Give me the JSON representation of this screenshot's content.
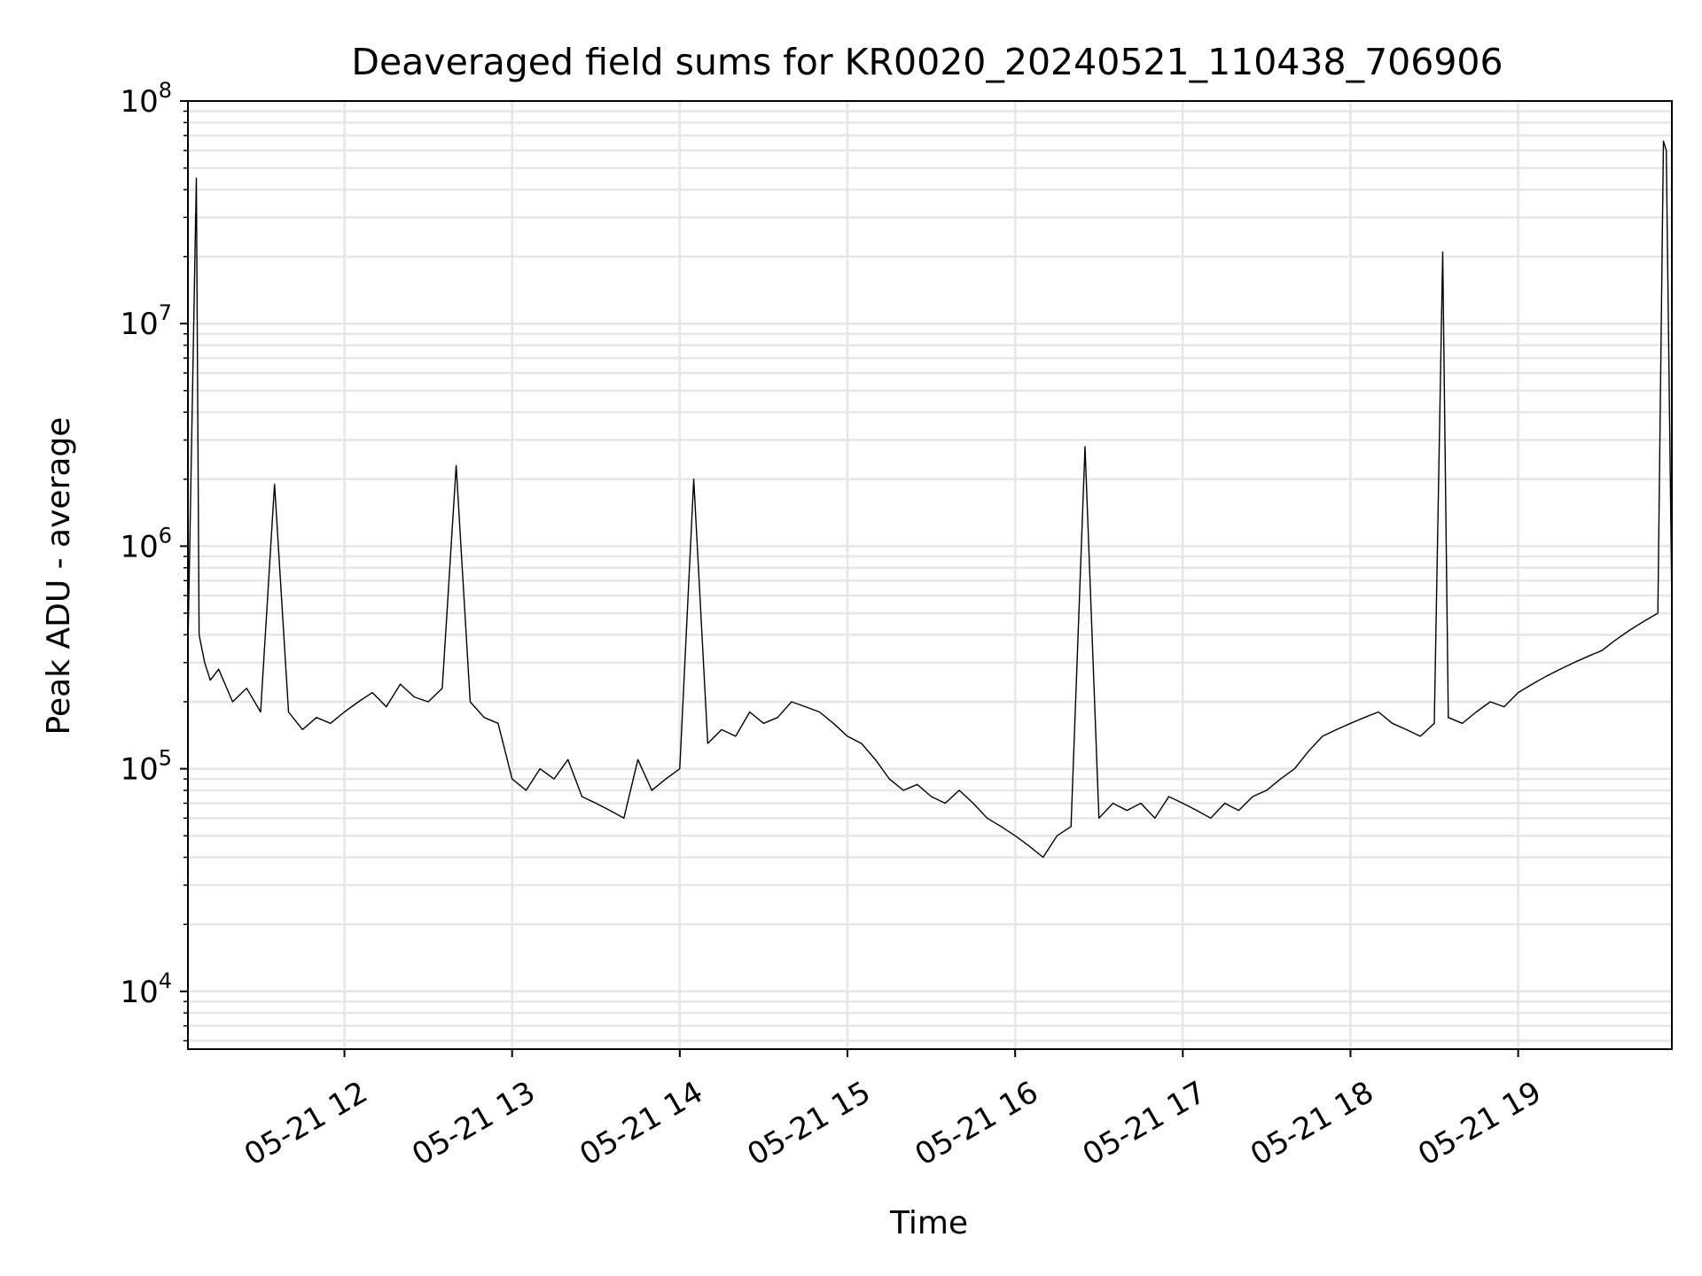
{
  "chart_data": {
    "type": "line",
    "title": "Deaveraged field sums for KR0020_20240521_110438_706906",
    "xlabel": "Time",
    "ylabel": "Peak ADU - average",
    "yscale": "log",
    "ylim": [
      5500,
      100000000
    ],
    "xlim": [
      "2024-05-21 11:04",
      "2024-05-21 19:55"
    ],
    "grid": true,
    "line_color": "#000000",
    "grid_color": "#e6e6e6",
    "x_ticks": [
      {
        "value": "2024-05-21 12:00",
        "label": "05-21 12"
      },
      {
        "value": "2024-05-21 13:00",
        "label": "05-21 13"
      },
      {
        "value": "2024-05-21 14:00",
        "label": "05-21 14"
      },
      {
        "value": "2024-05-21 15:00",
        "label": "05-21 15"
      },
      {
        "value": "2024-05-21 16:00",
        "label": "05-21 16"
      },
      {
        "value": "2024-05-21 17:00",
        "label": "05-21 17"
      },
      {
        "value": "2024-05-21 18:00",
        "label": "05-21 18"
      },
      {
        "value": "2024-05-21 19:00",
        "label": "05-21 19"
      }
    ],
    "y_ticks": [
      {
        "value": 10000,
        "base": "10",
        "exp": "4"
      },
      {
        "value": 100000,
        "base": "10",
        "exp": "5"
      },
      {
        "value": 1000000,
        "base": "10",
        "exp": "6"
      },
      {
        "value": 10000000,
        "base": "10",
        "exp": "7"
      },
      {
        "value": 100000000,
        "base": "10",
        "exp": "8"
      }
    ],
    "series": [
      {
        "x": [
          "2024-05-21 11:04",
          "2024-05-21 11:07",
          "2024-05-21 11:08",
          "2024-05-21 11:10",
          "2024-05-21 11:12",
          "2024-05-21 11:15",
          "2024-05-21 11:20",
          "2024-05-21 11:25",
          "2024-05-21 11:30",
          "2024-05-21 11:35",
          "2024-05-21 11:40",
          "2024-05-21 11:45",
          "2024-05-21 11:50",
          "2024-05-21 11:55",
          "2024-05-21 12:00",
          "2024-05-21 12:05",
          "2024-05-21 12:10",
          "2024-05-21 12:15",
          "2024-05-21 12:20",
          "2024-05-21 12:25",
          "2024-05-21 12:30",
          "2024-05-21 12:35",
          "2024-05-21 12:40",
          "2024-05-21 12:45",
          "2024-05-21 12:50",
          "2024-05-21 12:55",
          "2024-05-21 13:00",
          "2024-05-21 13:05",
          "2024-05-21 13:10",
          "2024-05-21 13:15",
          "2024-05-21 13:20",
          "2024-05-21 13:25",
          "2024-05-21 13:30",
          "2024-05-21 13:35",
          "2024-05-21 13:40",
          "2024-05-21 13:45",
          "2024-05-21 13:50",
          "2024-05-21 13:55",
          "2024-05-21 14:00",
          "2024-05-21 14:05",
          "2024-05-21 14:10",
          "2024-05-21 14:15",
          "2024-05-21 14:20",
          "2024-05-21 14:25",
          "2024-05-21 14:30",
          "2024-05-21 14:35",
          "2024-05-21 14:40",
          "2024-05-21 14:45",
          "2024-05-21 14:50",
          "2024-05-21 14:55",
          "2024-05-21 15:00",
          "2024-05-21 15:05",
          "2024-05-21 15:10",
          "2024-05-21 15:15",
          "2024-05-21 15:20",
          "2024-05-21 15:25",
          "2024-05-21 15:30",
          "2024-05-21 15:35",
          "2024-05-21 15:40",
          "2024-05-21 15:45",
          "2024-05-21 15:50",
          "2024-05-21 15:55",
          "2024-05-21 16:00",
          "2024-05-21 16:05",
          "2024-05-21 16:10",
          "2024-05-21 16:15",
          "2024-05-21 16:20",
          "2024-05-21 16:25",
          "2024-05-21 16:30",
          "2024-05-21 16:35",
          "2024-05-21 16:40",
          "2024-05-21 16:45",
          "2024-05-21 16:50",
          "2024-05-21 16:55",
          "2024-05-21 17:00",
          "2024-05-21 17:05",
          "2024-05-21 17:10",
          "2024-05-21 17:15",
          "2024-05-21 17:20",
          "2024-05-21 17:25",
          "2024-05-21 17:30",
          "2024-05-21 17:35",
          "2024-05-21 17:40",
          "2024-05-21 17:45",
          "2024-05-21 17:50",
          "2024-05-21 17:55",
          "2024-05-21 18:00",
          "2024-05-21 18:05",
          "2024-05-21 18:10",
          "2024-05-21 18:15",
          "2024-05-21 18:20",
          "2024-05-21 18:25",
          "2024-05-21 18:30",
          "2024-05-21 18:33",
          "2024-05-21 18:35",
          "2024-05-21 18:40",
          "2024-05-21 18:45",
          "2024-05-21 18:50",
          "2024-05-21 18:55",
          "2024-05-21 19:00",
          "2024-05-21 19:05",
          "2024-05-21 19:10",
          "2024-05-21 19:15",
          "2024-05-21 19:20",
          "2024-05-21 19:25",
          "2024-05-21 19:30",
          "2024-05-21 19:35",
          "2024-05-21 19:40",
          "2024-05-21 19:45",
          "2024-05-21 19:50",
          "2024-05-21 19:52",
          "2024-05-21 19:53",
          "2024-05-21 19:55"
        ],
        "y": [
          350000,
          45000000,
          400000,
          300000,
          250000,
          280000,
          200000,
          230000,
          180000,
          1900000,
          180000,
          150000,
          170000,
          160000,
          180000,
          200000,
          220000,
          190000,
          240000,
          210000,
          200000,
          230000,
          2300000,
          200000,
          170000,
          160000,
          90000,
          80000,
          100000,
          90000,
          110000,
          75000,
          70000,
          65000,
          60000,
          110000,
          80000,
          90000,
          100000,
          2000000,
          130000,
          150000,
          140000,
          180000,
          160000,
          170000,
          200000,
          190000,
          180000,
          160000,
          140000,
          130000,
          110000,
          90000,
          80000,
          85000,
          75000,
          70000,
          80000,
          70000,
          60000,
          55000,
          50000,
          45000,
          40000,
          50000,
          55000,
          2800000,
          60000,
          70000,
          65000,
          70000,
          60000,
          75000,
          70000,
          65000,
          60000,
          70000,
          65000,
          75000,
          80000,
          90000,
          100000,
          120000,
          140000,
          150000,
          160000,
          170000,
          180000,
          160000,
          150000,
          140000,
          160000,
          21000000,
          170000,
          160000,
          180000,
          200000,
          190000,
          220000,
          240000,
          260000,
          280000,
          300000,
          320000,
          340000,
          380000,
          420000,
          460000,
          500000,
          66000000,
          60000000,
          550000
        ]
      }
    ]
  }
}
